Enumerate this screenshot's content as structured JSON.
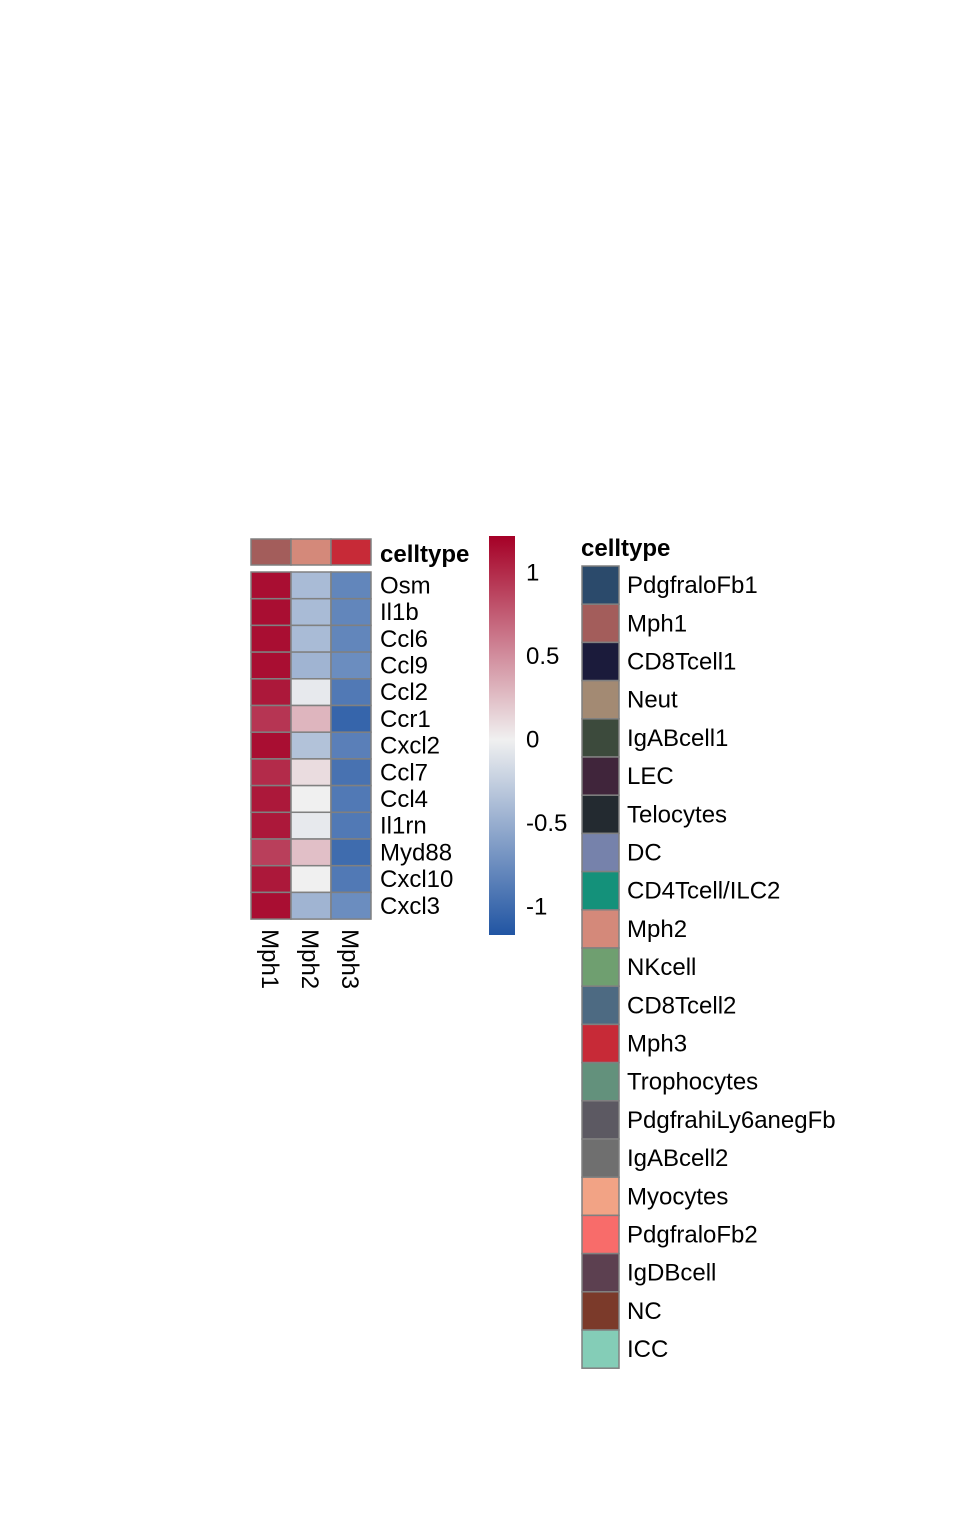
{
  "chart_data": {
    "type": "heatmap",
    "columns": [
      "Mph1",
      "Mph2",
      "Mph3"
    ],
    "rows": [
      "Osm",
      "Il1b",
      "Ccl6",
      "Ccl9",
      "Ccl2",
      "Ccr1",
      "Cxcl2",
      "Ccl7",
      "Ccl4",
      "Il1rn",
      "Myd88",
      "Cxcl10",
      "Cxcl3"
    ],
    "values": [
      [
        1.15,
        -0.4,
        -0.8
      ],
      [
        1.15,
        -0.4,
        -0.8
      ],
      [
        1.15,
        -0.4,
        -0.8
      ],
      [
        1.15,
        -0.45,
        -0.75
      ],
      [
        1.1,
        -0.05,
        -0.9
      ],
      [
        0.95,
        0.3,
        -1.05
      ],
      [
        1.15,
        -0.35,
        -0.85
      ],
      [
        1.0,
        0.1,
        -0.95
      ],
      [
        1.1,
        0.0,
        -0.9
      ],
      [
        1.1,
        -0.05,
        -0.9
      ],
      [
        0.9,
        0.25,
        -1.0
      ],
      [
        1.1,
        0.0,
        -0.9
      ],
      [
        1.15,
        -0.45,
        -0.75
      ]
    ],
    "colorbar": {
      "ticks": [
        "1",
        "0.5",
        "0",
        "-0.5",
        "-1"
      ],
      "tick_values": [
        1,
        0.5,
        0,
        -0.5,
        -1
      ],
      "range": [
        -1.17,
        1.22
      ],
      "colors": [
        "#2155a3",
        "#f0f0f0",
        "#a50026"
      ]
    },
    "annotation": {
      "title": "celltype",
      "column_colors": [
        "#a35d5b",
        "#d4897a",
        "#c72a37"
      ]
    },
    "legend": {
      "title": "celltype",
      "items": [
        {
          "label": "PdgfraloFb1",
          "color": "#2b4a6b"
        },
        {
          "label": "Mph1",
          "color": "#a35d5b"
        },
        {
          "label": "CD8Tcell1",
          "color": "#1b1b3b"
        },
        {
          "label": "Neut",
          "color": "#a38a73"
        },
        {
          "label": "IgABcell1",
          "color": "#3c4a3c"
        },
        {
          "label": "LEC",
          "color": "#40253b"
        },
        {
          "label": "Telocytes",
          "color": "#232a30"
        },
        {
          "label": "DC",
          "color": "#7682ab"
        },
        {
          "label": "CD4Tcell/ILC2",
          "color": "#14917a"
        },
        {
          "label": "Mph2",
          "color": "#d4897a"
        },
        {
          "label": "NKcell",
          "color": "#6f9f70"
        },
        {
          "label": "CD8Tcell2",
          "color": "#4d6a82"
        },
        {
          "label": "Mph3",
          "color": "#c72a37"
        },
        {
          "label": "Trophocytes",
          "color": "#63917c"
        },
        {
          "label": "PdgfrahiLy6anegFb",
          "color": "#5c5962"
        },
        {
          "label": "IgABcell2",
          "color": "#6f6f6f"
        },
        {
          "label": "Myocytes",
          "color": "#f2a385"
        },
        {
          "label": "PdgfraloFb2",
          "color": "#f86c6a"
        },
        {
          "label": "IgDBcell",
          "color": "#5c4050"
        },
        {
          "label": "NC",
          "color": "#7b3a2a"
        },
        {
          "label": "ICC",
          "color": "#84cdb7"
        }
      ]
    }
  }
}
